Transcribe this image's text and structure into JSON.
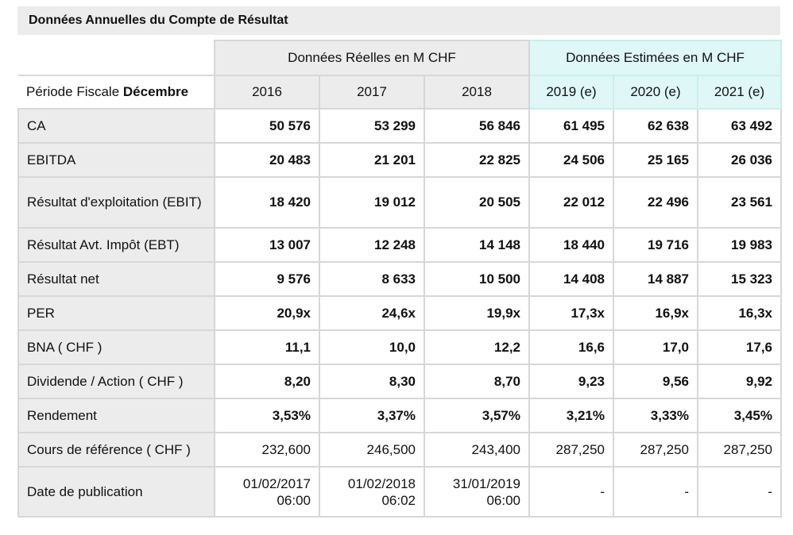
{
  "title": "Données Annuelles du Compte de Résultat",
  "header": {
    "real_group": "Données Réelles en M CHF",
    "est_group": "Données Estimées en M CHF",
    "period_prefix": "Période Fiscale ",
    "period_bold": "Décembre",
    "years": [
      "2016",
      "2017",
      "2018",
      "2019 (e)",
      "2020 (e)",
      "2021 (e)"
    ]
  },
  "rows": [
    {
      "label": "CA",
      "values": [
        "50 576",
        "53 299",
        "56 846",
        "61 495",
        "62 638",
        "63 492"
      ]
    },
    {
      "label": "EBITDA",
      "values": [
        "20 483",
        "21 201",
        "22 825",
        "24 506",
        "25 165",
        "26 036"
      ]
    },
    {
      "label": "Résultat d'exploitation (EBIT)",
      "values": [
        "18 420",
        "19 012",
        "20 505",
        "22 012",
        "22 496",
        "23 561"
      ]
    },
    {
      "label": "Résultat Avt. Impôt (EBT)",
      "values": [
        "13 007",
        "12 248",
        "14 148",
        "18 440",
        "19 716",
        "19 983"
      ]
    },
    {
      "label": "Résultat net",
      "values": [
        "9 576",
        "8 633",
        "10 500",
        "14 408",
        "14 887",
        "15 323"
      ]
    },
    {
      "label": "PER",
      "values": [
        "20,9x",
        "24,6x",
        "19,9x",
        "17,3x",
        "16,9x",
        "16,3x"
      ]
    },
    {
      "label": "BNA ( CHF )",
      "values": [
        "11,1",
        "10,0",
        "12,2",
        "16,6",
        "17,0",
        "17,6"
      ]
    },
    {
      "label": "Dividende / Action ( CHF )",
      "values": [
        "8,20",
        "8,30",
        "8,70",
        "9,23",
        "9,56",
        "9,92"
      ]
    },
    {
      "label": "Rendement",
      "values": [
        "3,53%",
        "3,37%",
        "3,57%",
        "3,21%",
        "3,33%",
        "3,45%"
      ]
    },
    {
      "label": "Cours de référence ( CHF )",
      "values": [
        "232,600",
        "246,500",
        "243,400",
        "287,250",
        "287,250",
        "287,250"
      ]
    },
    {
      "label": "Date de publication",
      "values": [
        [
          "01/02/2017",
          "06:00"
        ],
        [
          "01/02/2018",
          "06:02"
        ],
        [
          "31/01/2019",
          "06:00"
        ],
        "-",
        "-",
        "-"
      ]
    }
  ]
}
